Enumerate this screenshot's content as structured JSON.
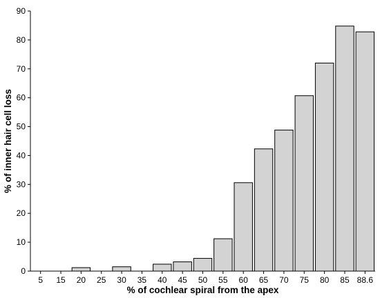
{
  "chart_data": {
    "type": "bar",
    "categories": [
      "5",
      "15",
      "20",
      "25",
      "30",
      "35",
      "40",
      "45",
      "50",
      "55",
      "60",
      "65",
      "70",
      "75",
      "80",
      "85",
      "88.6"
    ],
    "values": [
      0,
      0,
      1.2,
      0,
      1.5,
      0,
      2.4,
      3.2,
      4.4,
      11.2,
      30.6,
      42.3,
      48.8,
      60.7,
      72.0,
      84.8,
      82.8
    ],
    "title": "",
    "xlabel": "% of cochlear spiral from the apex",
    "ylabel": "% of inner hair cell loss",
    "ylim": [
      0,
      90
    ],
    "yticks": [
      0,
      10,
      20,
      30,
      40,
      50,
      60,
      70,
      80,
      90
    ],
    "grid": false,
    "colors": {
      "bar_fill": "#d3d3d3",
      "bar_stroke": "#000000",
      "axis": "#000000"
    }
  }
}
